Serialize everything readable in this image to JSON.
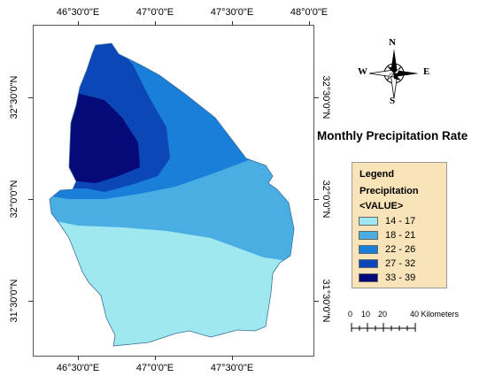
{
  "map": {
    "title": "Monthly Precipitation Rate",
    "longitude_labels": [
      "46°30'0\"E",
      "47°0'0\"E",
      "47°30'0\"E",
      "48°0'0\"E"
    ],
    "longitude_labels_bottom": [
      "46°30'0\"E",
      "47°0'0\"E",
      "47°30'0\"E"
    ],
    "latitude_labels": [
      "32°30'0\"N",
      "32°0'0\"N",
      "31°30'0\"N"
    ]
  },
  "legend": {
    "heading": "Legend",
    "field": "Precipitation",
    "value_label": "<VALUE>",
    "classes": [
      {
        "label": "14 - 17",
        "color": "#9fe8ef"
      },
      {
        "label": "18 - 21",
        "color": "#4aaee3"
      },
      {
        "label": "22 - 26",
        "color": "#1a7fd9"
      },
      {
        "label": "27 - 32",
        "color": "#0c47b8"
      },
      {
        "label": "33 - 39",
        "color": "#050a78"
      }
    ]
  },
  "north_arrow": {
    "n": "N",
    "s": "S",
    "e": "E",
    "w": "W"
  },
  "scale_bar": {
    "ticks": [
      "0",
      "10",
      "20",
      "40 Kilometers"
    ]
  }
}
